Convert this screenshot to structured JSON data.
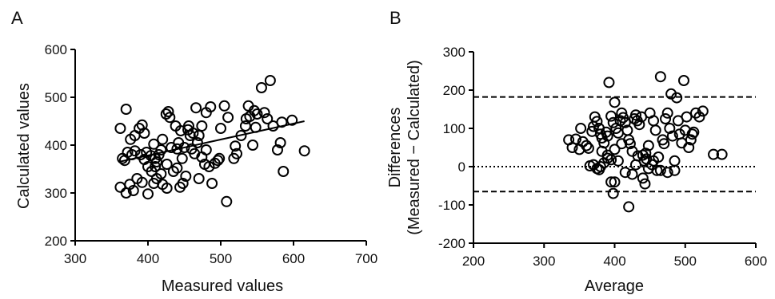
{
  "chart_data": [
    {
      "panel": "A",
      "type": "scatter",
      "xlabel": "Measured values",
      "ylabel": "Calculated values",
      "xlim": [
        300,
        700
      ],
      "ylim": [
        200,
        600
      ],
      "xticks": [
        300,
        400,
        500,
        600,
        700
      ],
      "yticks": [
        200,
        300,
        400,
        500,
        600
      ],
      "grid": false,
      "marker": "open-circle",
      "points": [
        [
          362,
          435
        ],
        [
          370,
          475
        ],
        [
          365,
          372
        ],
        [
          368,
          368
        ],
        [
          372,
          385
        ],
        [
          378,
          380
        ],
        [
          376,
          412
        ],
        [
          382,
          420
        ],
        [
          388,
          435
        ],
        [
          392,
          442
        ],
        [
          382,
          388
        ],
        [
          390,
          380
        ],
        [
          398,
          385
        ],
        [
          404,
          378
        ],
        [
          410,
          372
        ],
        [
          415,
          380
        ],
        [
          362,
          312
        ],
        [
          370,
          300
        ],
        [
          375,
          318
        ],
        [
          380,
          305
        ],
        [
          385,
          330
        ],
        [
          392,
          322
        ],
        [
          400,
          298
        ],
        [
          405,
          345
        ],
        [
          410,
          355
        ],
        [
          412,
          330
        ],
        [
          418,
          340
        ],
        [
          420,
          318
        ],
        [
          425,
          465
        ],
        [
          430,
          458
        ],
        [
          438,
          440
        ],
        [
          445,
          430
        ],
        [
          435,
          345
        ],
        [
          440,
          352
        ],
        [
          448,
          320
        ],
        [
          452,
          335
        ],
        [
          428,
          470
        ],
        [
          456,
          440
        ],
        [
          462,
          425
        ],
        [
          466,
          478
        ],
        [
          470,
          420
        ],
        [
          460,
          392
        ],
        [
          464,
          382
        ],
        [
          474,
          375
        ],
        [
          478,
          360
        ],
        [
          470,
          330
        ],
        [
          484,
          355
        ],
        [
          488,
          320
        ],
        [
          492,
          362
        ],
        [
          496,
          368
        ],
        [
          498,
          372
        ],
        [
          500,
          435
        ],
        [
          505,
          482
        ],
        [
          508,
          282
        ],
        [
          480,
          468
        ],
        [
          486,
          480
        ],
        [
          520,
          398
        ],
        [
          522,
          382
        ],
        [
          528,
          420
        ],
        [
          534,
          440
        ],
        [
          538,
          482
        ],
        [
          540,
          460
        ],
        [
          546,
          472
        ],
        [
          550,
          465
        ],
        [
          544,
          400
        ],
        [
          556,
          520
        ],
        [
          560,
          468
        ],
        [
          568,
          535
        ],
        [
          572,
          440
        ],
        [
          578,
          390
        ],
        [
          582,
          405
        ],
        [
          584,
          448
        ],
        [
          586,
          345
        ],
        [
          598,
          452
        ],
        [
          615,
          388
        ],
        [
          395,
          425
        ],
        [
          408,
          402
        ],
        [
          420,
          412
        ],
        [
          432,
          395
        ],
        [
          442,
          405
        ],
        [
          450,
          395
        ],
        [
          455,
          432
        ],
        [
          458,
          420
        ],
        [
          468,
          405
        ],
        [
          400,
          355
        ],
        [
          395,
          370
        ],
        [
          412,
          365
        ],
        [
          426,
          360
        ],
        [
          418,
          390
        ],
        [
          440,
          392
        ],
        [
          447,
          372
        ],
        [
          510,
          458
        ],
        [
          518,
          372
        ],
        [
          535,
          455
        ],
        [
          548,
          437
        ],
        [
          564,
          455
        ],
        [
          474,
          440
        ],
        [
          480,
          390
        ],
        [
          444,
          312
        ],
        [
          426,
          310
        ],
        [
          408,
          320
        ]
      ],
      "regression": {
        "x": [
          360,
          615
        ],
        "y": [
          365,
          450
        ]
      }
    },
    {
      "panel": "B",
      "type": "scatter",
      "xlabel": "Average",
      "ylabel_lines": [
        "Differences",
        "(Measured − Calculated)"
      ],
      "xlim": [
        200,
        600
      ],
      "ylim": [
        -200,
        300
      ],
      "xticks": [
        200,
        300,
        400,
        500,
        600
      ],
      "yticks": [
        -200,
        -100,
        0,
        100,
        200,
        300
      ],
      "grid": false,
      "marker": "open-circle",
      "reference_lines": [
        {
          "y": 182,
          "style": "dashed"
        },
        {
          "y": 0,
          "style": "dotted"
        },
        {
          "y": -65,
          "style": "dashed"
        }
      ],
      "points": [
        [
          335,
          70
        ],
        [
          340,
          50
        ],
        [
          345,
          72
        ],
        [
          350,
          45
        ],
        [
          352,
          100
        ],
        [
          355,
          65
        ],
        [
          360,
          55
        ],
        [
          363,
          48
        ],
        [
          368,
          92
        ],
        [
          370,
          105
        ],
        [
          372,
          130
        ],
        [
          375,
          118
        ],
        [
          378,
          100
        ],
        [
          380,
          85
        ],
        [
          382,
          75
        ],
        [
          385,
          62
        ],
        [
          388,
          90
        ],
        [
          390,
          80
        ],
        [
          392,
          220
        ],
        [
          395,
          132
        ],
        [
          398,
          115
        ],
        [
          400,
          168
        ],
        [
          402,
          100
        ],
        [
          405,
          88
        ],
        [
          408,
          120
        ],
        [
          410,
          140
        ],
        [
          412,
          128
        ],
        [
          415,
          115
        ],
        [
          418,
          95
        ],
        [
          420,
          70
        ],
        [
          422,
          60
        ],
        [
          425,
          40
        ],
        [
          428,
          125
        ],
        [
          430,
          135
        ],
        [
          432,
          120
        ],
        [
          435,
          110
        ],
        [
          438,
          130
        ],
        [
          440,
          30
        ],
        [
          442,
          15
        ],
        [
          444,
          35
        ],
        [
          445,
          20
        ],
        [
          448,
          55
        ],
        [
          450,
          140
        ],
        [
          453,
          5
        ],
        [
          455,
          120
        ],
        [
          458,
          95
        ],
        [
          460,
          -10
        ],
        [
          462,
          25
        ],
        [
          465,
          235
        ],
        [
          468,
          70
        ],
        [
          470,
          60
        ],
        [
          472,
          125
        ],
        [
          475,
          140
        ],
        [
          478,
          100
        ],
        [
          480,
          190
        ],
        [
          482,
          80
        ],
        [
          485,
          -10
        ],
        [
          488,
          180
        ],
        [
          490,
          120
        ],
        [
          492,
          85
        ],
        [
          495,
          62
        ],
        [
          498,
          225
        ],
        [
          500,
          95
        ],
        [
          502,
          130
        ],
        [
          505,
          50
        ],
        [
          508,
          70
        ],
        [
          510,
          85
        ],
        [
          512,
          90
        ],
        [
          515,
          140
        ],
        [
          520,
          130
        ],
        [
          525,
          145
        ],
        [
          540,
          32
        ],
        [
          552,
          32
        ],
        [
          370,
          5
        ],
        [
          375,
          -5
        ],
        [
          380,
          0
        ],
        [
          385,
          10
        ],
        [
          390,
          30
        ],
        [
          395,
          -40
        ],
        [
          398,
          -70
        ],
        [
          400,
          -40
        ],
        [
          405,
          15
        ],
        [
          415,
          -15
        ],
        [
          420,
          -105
        ],
        [
          425,
          -20
        ],
        [
          430,
          5
        ],
        [
          440,
          -30
        ],
        [
          443,
          -45
        ],
        [
          448,
          -5
        ],
        [
          465,
          -10
        ],
        [
          475,
          -15
        ],
        [
          390,
          22
        ],
        [
          395,
          18
        ],
        [
          400,
          45
        ],
        [
          382,
          40
        ],
        [
          378,
          -8
        ],
        [
          365,
          2
        ],
        [
          410,
          60
        ],
        [
          433,
          28
        ],
        [
          455,
          15
        ],
        [
          485,
          15
        ]
      ]
    }
  ],
  "panels": {
    "a": {
      "label": "A",
      "xlabel": "Measured values",
      "ylabel": "Calculated values",
      "xticks": [
        "300",
        "400",
        "500",
        "600",
        "700"
      ],
      "yticks": [
        "200",
        "300",
        "400",
        "500",
        "600"
      ]
    },
    "b": {
      "label": "B",
      "xlabel": "Average",
      "ylabel_line1": "Differences",
      "ylabel_line2": "(Measured − Calculated)",
      "xticks": [
        "200",
        "300",
        "400",
        "500",
        "600"
      ],
      "yticks": [
        "-200",
        "-100",
        "0",
        "100",
        "200",
        "300"
      ]
    }
  }
}
